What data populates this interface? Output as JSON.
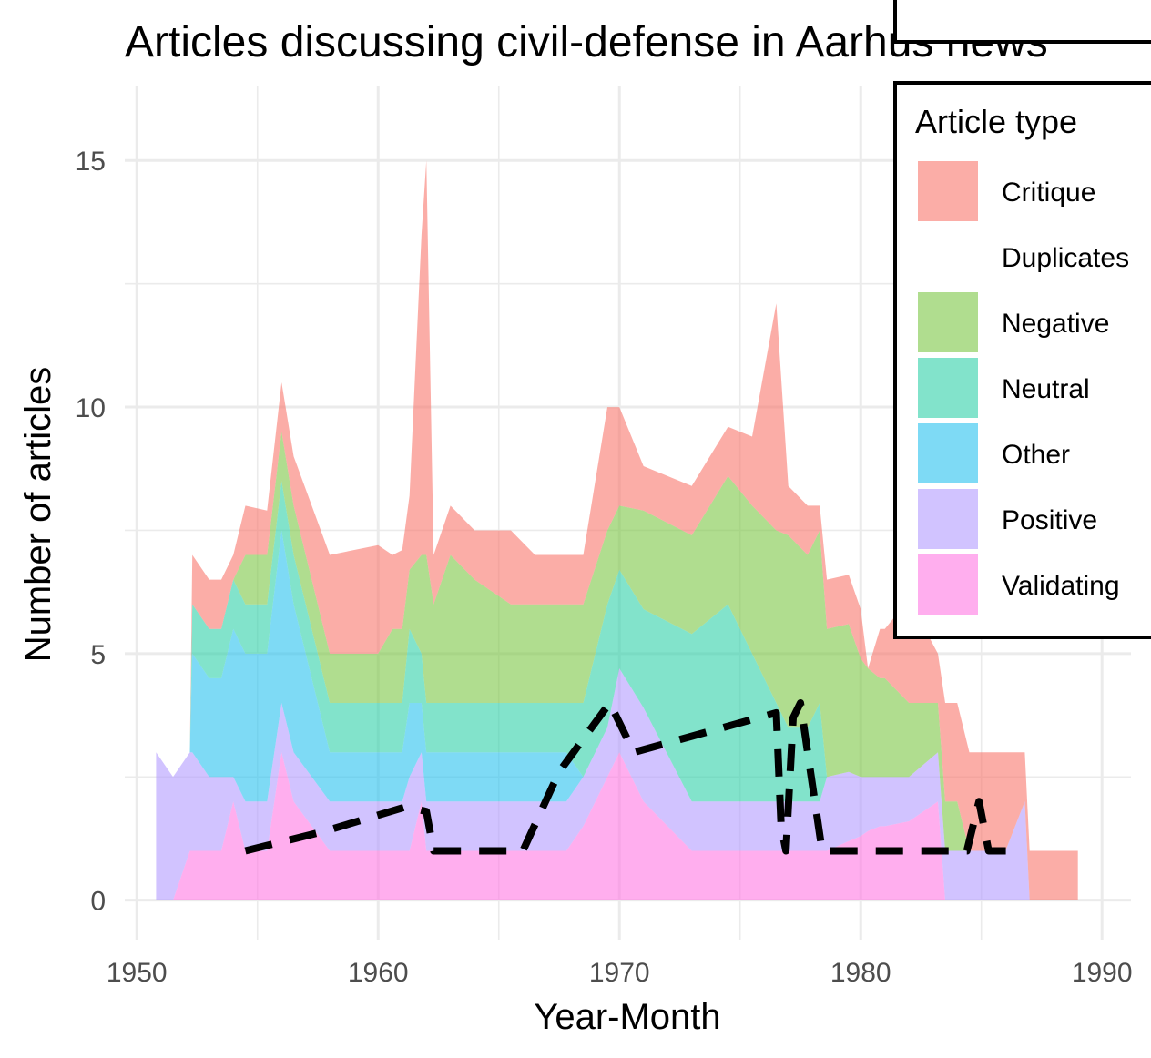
{
  "chart_data": {
    "type": "area",
    "stacked": true,
    "title": "Articles discussing civil-defense in Aarhus news",
    "xlabel": "Year-Month",
    "ylabel": "Number of articles",
    "xlim": [
      1949.5,
      1991.2
    ],
    "ylim": [
      -0.8,
      16.5
    ],
    "x_ticks": [
      1950,
      1960,
      1970,
      1980,
      1990
    ],
    "y_ticks": [
      0,
      5,
      10,
      15
    ],
    "grid": true,
    "legend": {
      "title": "Article type",
      "placement": "right",
      "entries": [
        "Critique",
        "Duplicates",
        "Negative",
        "Neutral",
        "Other",
        "Positive",
        "Validating"
      ]
    },
    "colors": {
      "Critique": "#f8766d",
      "Duplicates": "#ffffff",
      "Negative": "#7cc744",
      "Neutral": "#2fd1a8",
      "Other": "#28c1ef",
      "Positive": "#b29bff",
      "Validating": "#ff78e2"
    },
    "area_alpha": 0.6,
    "x": [
      1950.8,
      1951.5,
      1952.2,
      1952.3,
      1953.0,
      1953.5,
      1954.0,
      1954.5,
      1955.4,
      1956.0,
      1956.5,
      1958.0,
      1960.0,
      1960.6,
      1961.0,
      1961.3,
      1961.8,
      1962.0,
      1962.3,
      1963.0,
      1964.0,
      1965.5,
      1966.5,
      1967.8,
      1968.5,
      1969.5,
      1970.0,
      1971.0,
      1973.0,
      1974.5,
      1975.5,
      1976.5,
      1977.0,
      1977.8,
      1978.3,
      1978.6,
      1979.5,
      1980.0,
      1980.3,
      1980.8,
      1981.0,
      1982.0,
      1983.2,
      1983.5,
      1984.0,
      1984.5,
      1985.0,
      1986.0,
      1986.8,
      1987.0,
      1989.0
    ],
    "series": [
      {
        "name": "Validating",
        "values": [
          0,
          0,
          1,
          1,
          1,
          1,
          2,
          1,
          1,
          3,
          2,
          1,
          1,
          1,
          1,
          1,
          2,
          1,
          1,
          1,
          1,
          1,
          1,
          1,
          1.5,
          2.5,
          3,
          2,
          1,
          1,
          1,
          1,
          1,
          1,
          1,
          1,
          1.2,
          1.3,
          1.4,
          1.5,
          1.5,
          1.6,
          2,
          0,
          0,
          0,
          0,
          0,
          0,
          0,
          0
        ]
      },
      {
        "name": "Positive",
        "values": [
          3,
          2.5,
          2,
          2,
          1.5,
          1.5,
          0.5,
          1,
          1,
          1,
          1,
          1,
          1,
          1,
          1,
          1.5,
          1,
          1,
          1,
          1,
          1,
          1,
          1,
          1,
          1,
          1,
          1.7,
          1.9,
          1,
          1,
          1,
          1,
          1,
          1,
          1,
          1.5,
          1.4,
          1.2,
          1.1,
          1,
          1,
          0.9,
          1,
          1,
          1,
          1,
          1,
          1,
          2,
          0,
          0
        ]
      },
      {
        "name": "Other",
        "values": [
          0,
          0,
          0,
          2,
          2,
          2,
          3,
          3,
          3,
          3.5,
          3,
          1,
          1,
          1,
          1,
          1.5,
          1,
          1,
          1,
          1,
          1,
          1,
          1,
          1,
          0,
          0,
          0,
          0,
          0,
          0,
          0,
          0,
          0,
          0,
          0,
          0,
          0,
          0,
          0,
          0,
          0,
          0,
          0,
          0,
          0,
          0,
          0,
          0,
          0,
          0,
          0
        ]
      },
      {
        "name": "Neutral",
        "values": [
          0,
          0,
          0,
          1,
          1,
          1,
          1,
          1,
          1,
          1,
          1,
          1,
          1,
          1,
          1,
          1.5,
          1,
          1,
          1,
          1,
          1,
          1,
          1,
          1,
          1.5,
          2.5,
          2,
          2,
          3.4,
          4,
          3,
          2,
          1.5,
          1.5,
          2,
          0,
          0,
          0,
          0,
          0,
          0,
          0,
          0,
          0,
          0,
          0,
          0,
          0,
          0,
          0,
          0
        ]
      },
      {
        "name": "Negative",
        "values": [
          0,
          0,
          0,
          0,
          0,
          0,
          0,
          1,
          1,
          1,
          1,
          1,
          1,
          1.5,
          1.5,
          1.2,
          2,
          3,
          2,
          3,
          2.5,
          2,
          2,
          2,
          2,
          1.5,
          1.3,
          2,
          2,
          2.6,
          3,
          3.5,
          3.9,
          3.5,
          3.5,
          3,
          3,
          2.4,
          2.2,
          2,
          2,
          1.5,
          1,
          1,
          1,
          0,
          0,
          0,
          0,
          0,
          0
        ]
      },
      {
        "name": "Critique",
        "values": [
          0,
          0,
          0,
          1,
          1,
          1,
          0.5,
          1,
          0.9,
          1,
          1,
          2,
          2.2,
          1.5,
          1.6,
          1.5,
          6.5,
          8,
          1,
          1,
          1,
          1.5,
          1,
          1,
          1,
          2.5,
          2,
          0.9,
          1,
          1,
          1.4,
          4.6,
          1,
          1,
          0.5,
          1,
          1,
          1,
          0,
          1,
          1,
          2.1,
          1,
          2,
          2,
          2,
          2,
          2,
          1,
          1,
          1
        ]
      }
    ],
    "duplicates_line": {
      "name": "Duplicates",
      "style": "dashed",
      "x": [
        1954.5,
        1957.8,
        1961.2,
        1962.0,
        1962.3,
        1963.0,
        1964.5,
        1966.0,
        1967.5,
        1969.6,
        1970.6,
        1976.5,
        1976.7,
        1976.9,
        1977.2,
        1977.5,
        1977.8,
        1978.4,
        1979.0,
        1980.0,
        1983.0,
        1984.4,
        1984.9,
        1985.3,
        1986.5
      ],
      "values": [
        1,
        1.4,
        1.9,
        1.8,
        1,
        1,
        1,
        1,
        2.6,
        4,
        3,
        3.8,
        1.5,
        1,
        3.7,
        4,
        3,
        1,
        1,
        1,
        1,
        1,
        2,
        1,
        1
      ]
    }
  }
}
